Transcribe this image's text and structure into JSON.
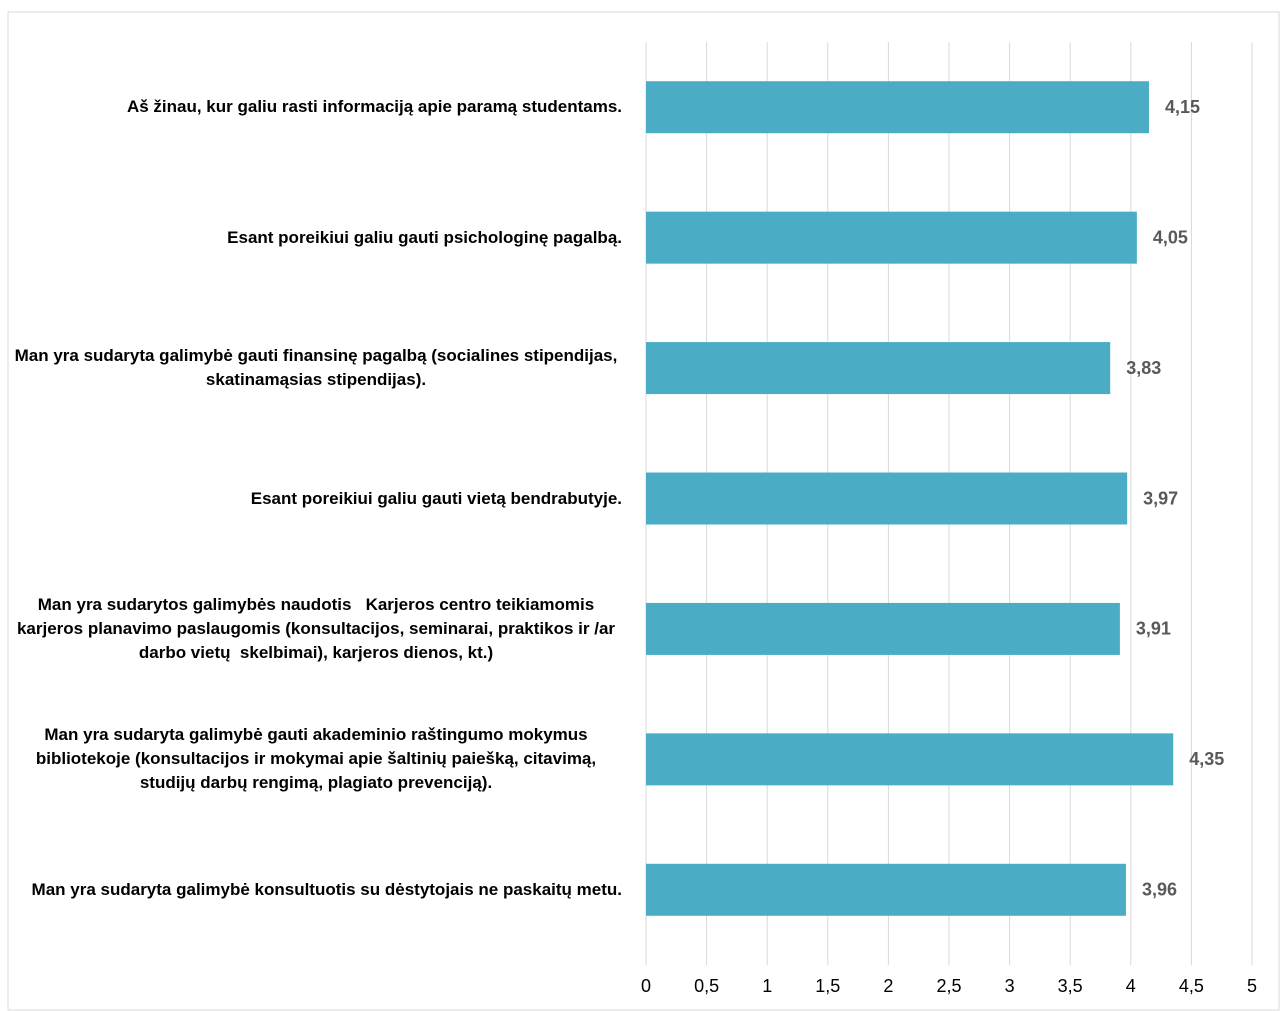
{
  "chart_data": {
    "type": "barh",
    "categories": [
      "Aš žinau, kur galiu rasti informaciją apie paramą studentams.",
      "Esant poreikiui galiu gauti psichologinę pagalbą.",
      "Man yra sudaryta galimybė gauti finansinę pagalbą (socialines stipendijas, skatinamąsias stipendijas).",
      "Esant poreikiui galiu gauti vietą bendrabutyje.",
      "Man yra sudarytos galimybės naudotis   Karjeros centro teikiamomis karjeros planavimo paslaugomis (konsultacijos, seminarai, praktikos ir /ar darbo vietų  skelbimai), karjeros dienos, kt.)",
      "Man yra sudaryta galimybė gauti akademinio raštingumo mokymus bibliotekoje (konsultacijos ir mokymai apie šaltinių paiešką, citavimą, studijų darbų rengimą, plagiato prevenciją).",
      "Man yra sudaryta galimybė konsultuotis su dėstytojais ne paskaitų metu."
    ],
    "values": [
      4.15,
      4.05,
      3.83,
      3.97,
      3.91,
      4.35,
      3.96
    ],
    "value_labels": [
      "4,15",
      "4,05",
      "3,83",
      "3,97",
      "3,91",
      "4,35",
      "3,96"
    ],
    "color": "#4bacc6",
    "xlim": [
      0,
      5
    ],
    "xticks": [
      0,
      {
        "value": 0.5,
        "label": "0,5"
      },
      1,
      {
        "value": 1.5,
        "label": "1,5"
      },
      2,
      {
        "value": 2.5,
        "label": "2,5"
      },
      3,
      {
        "value": 3.5,
        "label": "3,5"
      },
      4,
      {
        "value": 4.5,
        "label": "4,5"
      },
      5
    ],
    "grid": true
  }
}
